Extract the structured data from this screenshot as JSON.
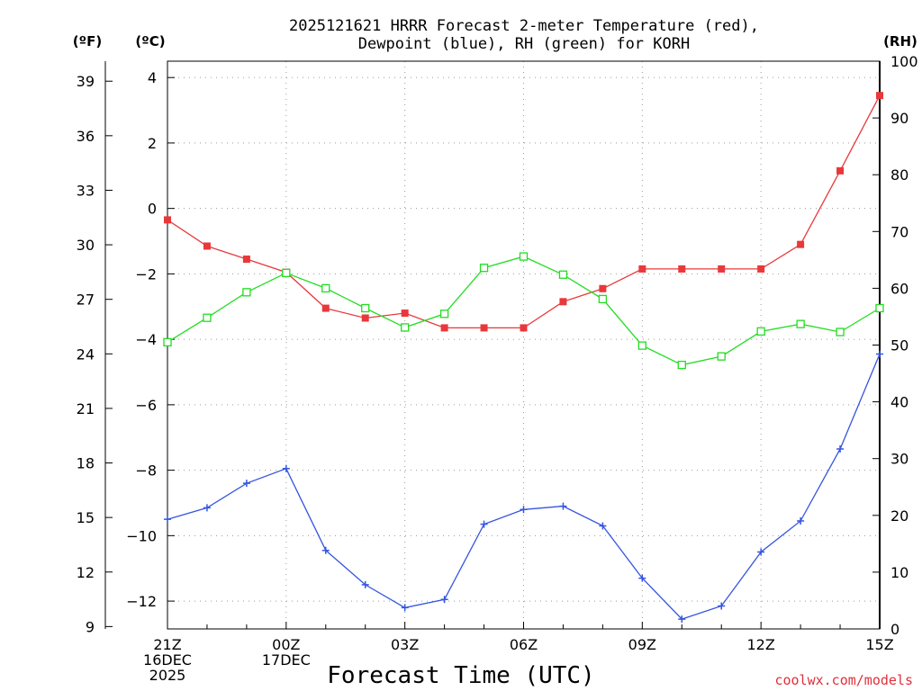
{
  "chart_data": {
    "type": "line",
    "title_line1": "2025121621 HRRR Forecast 2-meter Temperature (red),",
    "title_line2": "Dewpoint (blue), RH (green) for KORH",
    "xlabel": "Forecast Time (UTC)",
    "credit": "coolwx.com/models",
    "units": {
      "fahrenheit": "(ºF)",
      "celsius": "(ºC)",
      "rh": "(RH)"
    },
    "x_hours": [
      0,
      1,
      2,
      3,
      4,
      5,
      6,
      7,
      8,
      9,
      10,
      11,
      12,
      13,
      14,
      15,
      16,
      17,
      18
    ],
    "x_ticks": [
      {
        "hour": 0,
        "lines": [
          "21Z",
          "16DEC",
          "2025"
        ]
      },
      {
        "hour": 3,
        "lines": [
          "00Z",
          "17DEC"
        ]
      },
      {
        "hour": 6,
        "lines": [
          "03Z"
        ]
      },
      {
        "hour": 9,
        "lines": [
          "06Z"
        ]
      },
      {
        "hour": 12,
        "lines": [
          "09Z"
        ]
      },
      {
        "hour": 15,
        "lines": [
          "12Z"
        ]
      },
      {
        "hour": 18,
        "lines": [
          "15Z"
        ]
      }
    ],
    "celsius_range": [
      -12.85,
      4.5
    ],
    "celsius_ticks": [
      "4",
      "2",
      "0",
      "−2",
      "−4",
      "−6",
      "−8",
      "−10",
      "−12"
    ],
    "fahrenheit_range": [
      8.87,
      40.1
    ],
    "fahrenheit_ticks": [
      "39",
      "36",
      "33",
      "30",
      "27",
      "24",
      "21",
      "18",
      "15",
      "12",
      "9"
    ],
    "rh_range": [
      0,
      100
    ],
    "rh_ticks": [
      "100",
      "90",
      "80",
      "70",
      "60",
      "50",
      "40",
      "30",
      "20",
      "10",
      "0"
    ],
    "series": [
      {
        "name": "Temperature",
        "units": "°C",
        "color": "#e8383b",
        "marker": "filled-square",
        "values": [
          -0.35,
          -1.15,
          -1.55,
          -1.95,
          -3.05,
          -3.35,
          -3.2,
          -3.65,
          -3.65,
          -3.65,
          -2.85,
          -2.45,
          -1.85,
          -1.85,
          -1.85,
          -1.85,
          -1.1,
          1.15,
          3.45
        ]
      },
      {
        "name": "Dewpoint",
        "units": "°C",
        "color": "#3454e0",
        "marker": "plus",
        "values": [
          -9.5,
          -9.15,
          -8.4,
          -7.95,
          -10.45,
          -11.5,
          -12.2,
          -11.95,
          -9.65,
          -9.2,
          -9.1,
          -9.7,
          -11.3,
          -12.55,
          -12.15,
          -10.5,
          -9.55,
          -7.35,
          -4.45
        ]
      },
      {
        "name": "RH",
        "units": "%",
        "color": "#22dd22",
        "marker": "open-square",
        "values": [
          50.5,
          54.8,
          59.3,
          62.7,
          60.0,
          56.5,
          53.1,
          55.5,
          63.6,
          65.6,
          62.4,
          58.1,
          49.9,
          46.5,
          48.0,
          52.4,
          53.7,
          52.3,
          56.5
        ]
      }
    ]
  }
}
